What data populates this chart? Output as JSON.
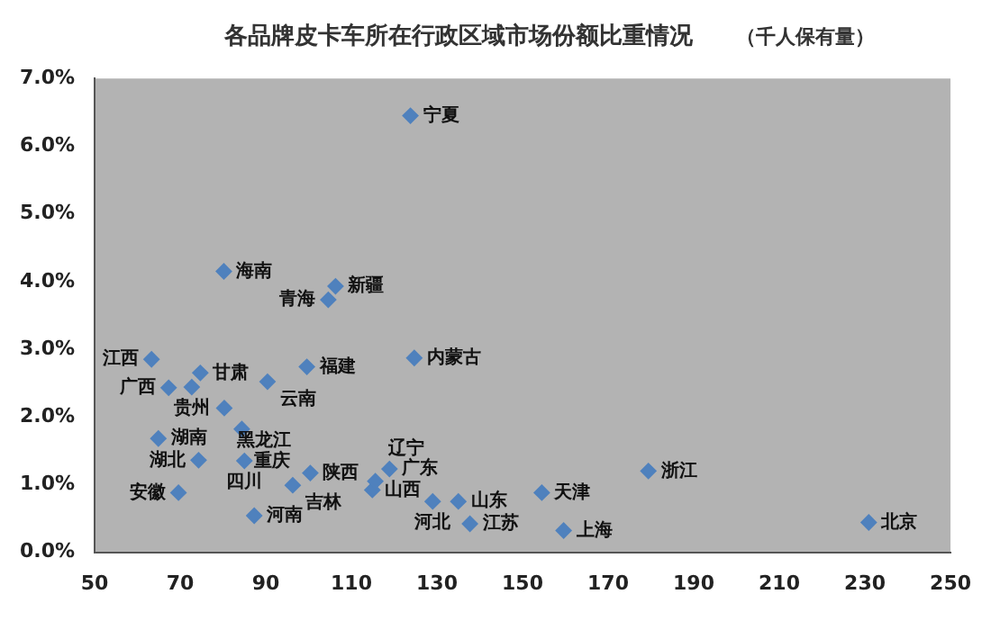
{
  "chart_data": {
    "type": "scatter",
    "title": "各品牌皮卡车所在行政区域市场份额比重情况",
    "subtitle": "（千人保有量）",
    "x": [
      123.8,
      80.2,
      106.3,
      104.6,
      99.6,
      124.7,
      63.3,
      74.7,
      67.3,
      72.7,
      90.4,
      80.3,
      64.9,
      84.4,
      74.3,
      85,
      100.4,
      96.3,
      69.6,
      87.3,
      118.9,
      114.9,
      115.6,
      129,
      135,
      137.7,
      154.5,
      159.6,
      179.4,
      230.9
    ],
    "series": [
      {
        "color": "#4f81bd",
        "values": [
          6.45,
          4.15,
          3.93,
          3.73,
          2.74,
          2.87,
          2.85,
          2.65,
          2.43,
          2.44,
          2.52,
          2.13,
          1.68,
          1.82,
          1.36,
          1.35,
          1.17,
          0.99,
          0.88,
          0.54,
          1.23,
          0.92,
          1.05,
          0.75,
          0.75,
          0.42,
          0.88,
          0.32,
          1.2,
          0.44
        ]
      }
    ],
    "marker": "diamond",
    "grid": false,
    "legend": false,
    "xlim": [
      50,
      250
    ],
    "xticks": [
      50,
      70,
      90,
      110,
      130,
      150,
      170,
      190,
      210,
      230,
      250
    ],
    "ylim": [
      0,
      7
    ],
    "yticks": [
      {
        "value": 0,
        "label": "0.0%"
      },
      {
        "value": 1,
        "label": "1.0%"
      },
      {
        "value": 2,
        "label": "2.0%"
      },
      {
        "value": 3,
        "label": "3.0%"
      },
      {
        "value": 4,
        "label": "4.0%"
      },
      {
        "value": 5,
        "label": "5.0%"
      },
      {
        "value": 6,
        "label": "6.0%"
      },
      {
        "value": 7,
        "label": "7.0%"
      }
    ],
    "annotations": [
      {
        "text": "宁夏",
        "x": 123.8,
        "y": 6.45
      },
      {
        "text": "海南",
        "x": 80.2,
        "y": 4.15
      },
      {
        "text": "新疆",
        "x": 106.3,
        "y": 3.93
      },
      {
        "text": "青海",
        "x": 104.6,
        "y": 3.73
      },
      {
        "text": "福建",
        "x": 99.6,
        "y": 2.74
      },
      {
        "text": "内蒙古",
        "x": 124.7,
        "y": 2.87
      },
      {
        "text": "江西",
        "x": 63.3,
        "y": 2.85
      },
      {
        "text": "甘肃",
        "x": 74.7,
        "y": 2.65
      },
      {
        "text": "广西",
        "x": 67.3,
        "y": 2.43
      },
      {
        "text": "贵州",
        "x": 72.7,
        "y": 2.44
      },
      {
        "text": "云南",
        "x": 90.4,
        "y": 2.52
      },
      {
        "text": "黑龙江",
        "x": 80.3,
        "y": 2.13
      },
      {
        "text": "湖南",
        "x": 64.9,
        "y": 1.68
      },
      {
        "text": "重庆",
        "x": 84.4,
        "y": 1.82
      },
      {
        "text": "湖北",
        "x": 74.3,
        "y": 1.36
      },
      {
        "text": "四川",
        "x": 85,
        "y": 1.35
      },
      {
        "text": "陕西",
        "x": 100.4,
        "y": 1.17
      },
      {
        "text": "吉林",
        "x": 96.3,
        "y": 0.99
      },
      {
        "text": "安徽",
        "x": 69.6,
        "y": 0.88
      },
      {
        "text": "河南",
        "x": 87.3,
        "y": 0.54
      },
      {
        "text": "广东",
        "x": 118.9,
        "y": 1.23
      },
      {
        "text": "山西",
        "x": 114.9,
        "y": 0.92
      },
      {
        "text": "辽宁",
        "x": 115.6,
        "y": 1.05
      },
      {
        "text": "河北",
        "x": 129,
        "y": 0.75
      },
      {
        "text": "山东",
        "x": 135,
        "y": 0.75
      },
      {
        "text": "江苏",
        "x": 137.7,
        "y": 0.42
      },
      {
        "text": "天津",
        "x": 154.5,
        "y": 0.88
      },
      {
        "text": "上海",
        "x": 159.6,
        "y": 0.32
      },
      {
        "text": "浙江",
        "x": 179.4,
        "y": 1.2
      },
      {
        "text": "北京",
        "x": 230.9,
        "y": 0.44
      }
    ]
  }
}
